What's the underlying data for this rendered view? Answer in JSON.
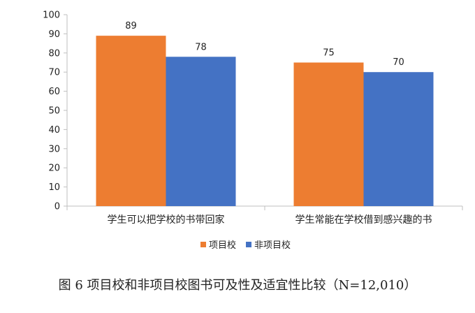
{
  "chart_data": {
    "type": "bar",
    "categories": [
      "学生可以把学校的书带回家",
      "学生常能在学校借到感兴趣的书"
    ],
    "series": [
      {
        "name": "项目校",
        "values": [
          89,
          75
        ],
        "color": "#ED7D31"
      },
      {
        "name": "非项目校",
        "values": [
          78,
          70
        ],
        "color": "#4472C4"
      }
    ],
    "ylim": [
      0,
      100
    ],
    "yticks": [
      0,
      10,
      20,
      30,
      40,
      50,
      60,
      70,
      80,
      90,
      100
    ],
    "grid": false,
    "legend_position": "bottom",
    "data_labels": true
  },
  "caption": "图 6  项目校和非项目校图书可及性及适宜性比较（N=12,010）"
}
